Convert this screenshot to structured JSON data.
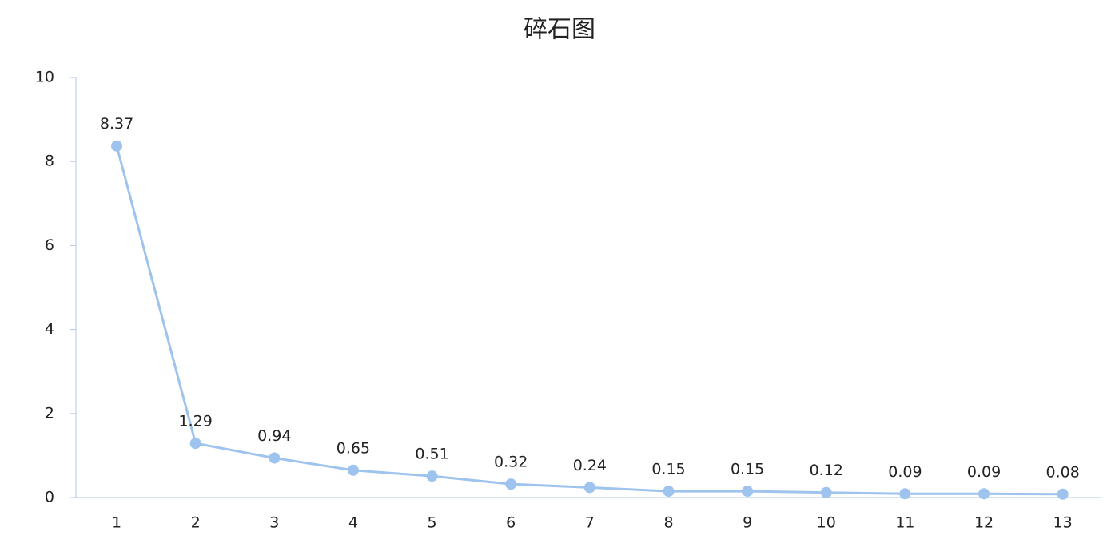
{
  "chart_data": {
    "type": "line",
    "title": "碎石图",
    "categories": [
      "1",
      "2",
      "3",
      "4",
      "5",
      "6",
      "7",
      "8",
      "9",
      "10",
      "11",
      "12",
      "13"
    ],
    "values": [
      8.37,
      1.29,
      0.94,
      0.65,
      0.51,
      0.32,
      0.24,
      0.15,
      0.15,
      0.12,
      0.09,
      0.09,
      0.08
    ],
    "color": "#9ec3ef",
    "ylim": [
      0,
      10
    ],
    "yticks": [
      0,
      2,
      4,
      6,
      8,
      10
    ],
    "grid": false
  }
}
